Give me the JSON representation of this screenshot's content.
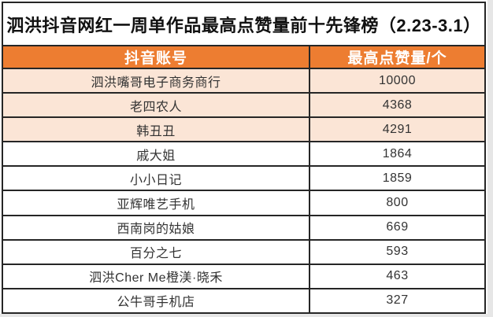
{
  "title": "泗洪抖音网红一周单作品最高点赞量前十先锋榜（2.23-3.1）",
  "table": {
    "columns": [
      "抖音账号",
      "最高点赞量/个"
    ],
    "rows": [
      {
        "account": "泗洪嘴哥电子商务商行",
        "likes": "10000",
        "highlighted": true
      },
      {
        "account": "老四农人",
        "likes": "4368",
        "highlighted": true
      },
      {
        "account": "韩丑丑",
        "likes": "4291",
        "highlighted": true
      },
      {
        "account": "戚大姐",
        "likes": "1864",
        "highlighted": false
      },
      {
        "account": "小小日记",
        "likes": "1859",
        "highlighted": false
      },
      {
        "account": "亚辉唯艺手机",
        "likes": "800",
        "highlighted": false
      },
      {
        "account": "西南岗的姑娘",
        "likes": "669",
        "highlighted": false
      },
      {
        "account": "百分之七",
        "likes": "593",
        "highlighted": false
      },
      {
        "account": "泗洪Cher Me橙渼·晓禾",
        "likes": "463",
        "highlighted": false
      },
      {
        "account": "公牛哥手机店",
        "likes": "327",
        "highlighted": false
      }
    ]
  },
  "chart_data": {
    "type": "table",
    "title": "泗洪抖音网红一周单作品最高点赞量前十先锋榜（2.23-3.1）",
    "columns": [
      "抖音账号",
      "最高点赞量/个"
    ],
    "rows": [
      [
        "泗洪嘴哥电子商务商行",
        10000
      ],
      [
        "老四农人",
        4368
      ],
      [
        "韩丑丑",
        4291
      ],
      [
        "戚大姐",
        1864
      ],
      [
        "小小日记",
        1859
      ],
      [
        "亚辉唯艺手机",
        800
      ],
      [
        "西南岗的姑娘",
        669
      ],
      [
        "百分之七",
        593
      ],
      [
        "泗洪Cher Me橙渼·晓禾",
        463
      ],
      [
        "公牛哥手机店",
        327
      ]
    ],
    "layout_hints": {
      "highlighted_top_rows": 3,
      "grid": true
    }
  },
  "colors": {
    "header_bg": "#ED7D31",
    "header_text": "#FFFFFF",
    "highlight_row_bg": "#FBE5D6",
    "row_bg": "#FFFFFF",
    "border": "#262626",
    "title_text": "#111111",
    "cell_text": "#333333"
  }
}
